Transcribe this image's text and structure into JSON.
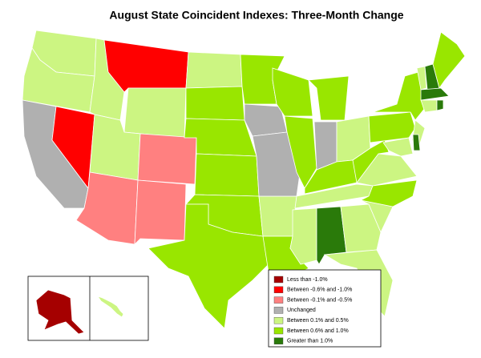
{
  "map": {
    "title": "August State Coincident Indexes: Three-Month Change",
    "legend": [
      {
        "label": "Less than -1.0%",
        "color": "#a50000"
      },
      {
        "label": "Between -0.6% and -1.0%",
        "color": "#ff0000"
      },
      {
        "label": "Between -0.1% and -0.5%",
        "color": "#ff8080"
      },
      {
        "label": "Unchanged",
        "color": "#b0b0b0"
      },
      {
        "label": "Between 0.1% and 0.5%",
        "color": "#ccf582"
      },
      {
        "label": "Between 0.6% and 1.0%",
        "color": "#99e600"
      },
      {
        "label": "Greater than 1.0%",
        "color": "#2a7a0a"
      }
    ],
    "region_classes": [
      4,
      4,
      3,
      1,
      4,
      1,
      4,
      4,
      2,
      2,
      2,
      4,
      5,
      5,
      5,
      5,
      5,
      4,
      5,
      5,
      3,
      3,
      5,
      5,
      5,
      3,
      4,
      5,
      4,
      4,
      6,
      4,
      4,
      4,
      5,
      4,
      5,
      5,
      5,
      4,
      4,
      6,
      4,
      6,
      5,
      6,
      4,
      6,
      0,
      4
    ]
  }
}
